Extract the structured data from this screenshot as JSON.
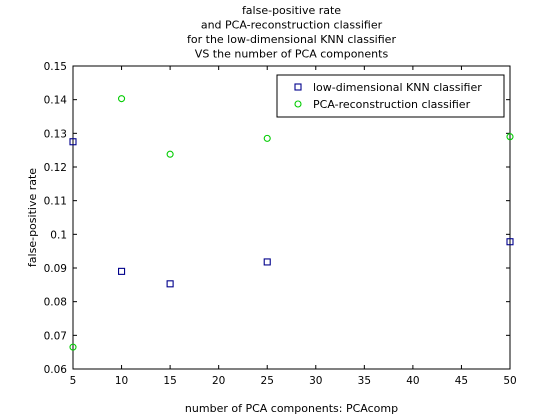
{
  "chart_data": {
    "type": "scatter",
    "title": [
      "false-positive rate",
      "and PCA-reconstruction classifier",
      "for the low-dimensional KNN classifier",
      "VS the number of PCA components"
    ],
    "xlabel": "number of PCA components: PCAcomp",
    "ylabel": "false-positive rate",
    "xlim": [
      5,
      50
    ],
    "ylim": [
      0.06,
      0.15
    ],
    "xticks": [
      "5",
      "10",
      "15",
      "20",
      "25",
      "30",
      "35",
      "40",
      "45",
      "50"
    ],
    "yticks": [
      "0.06",
      "0.07",
      "0.08",
      "0.09",
      "0.1",
      "0.11",
      "0.12",
      "0.13",
      "0.14",
      "0.15"
    ],
    "legend_position": "top-right",
    "grid": false,
    "series": [
      {
        "name": "low-dimensional KNN classifier",
        "marker": "square",
        "color": "#00008b",
        "x": [
          5,
          10,
          15,
          25,
          50
        ],
        "y": [
          0.1275,
          0.089,
          0.0853,
          0.0918,
          0.0978
        ]
      },
      {
        "name": "PCA-reconstruction classifier",
        "marker": "circle",
        "color": "#00cc00",
        "x": [
          5,
          10,
          15,
          25,
          50
        ],
        "y": [
          0.0665,
          0.1403,
          0.1238,
          0.1285,
          0.129
        ]
      }
    ]
  }
}
